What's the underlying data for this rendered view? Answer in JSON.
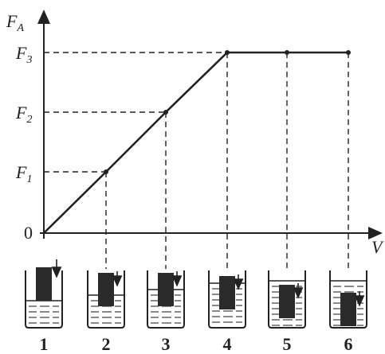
{
  "y_axis_label": {
    "main": "F",
    "sub": "A"
  },
  "x_axis_label": "V",
  "origin_label": "0",
  "levels": [
    {
      "main": "F",
      "sub": "1"
    },
    {
      "main": "F",
      "sub": "2"
    },
    {
      "main": "F",
      "sub": "3"
    }
  ],
  "stages": [
    "1",
    "2",
    "3",
    "4",
    "5",
    "6"
  ]
}
